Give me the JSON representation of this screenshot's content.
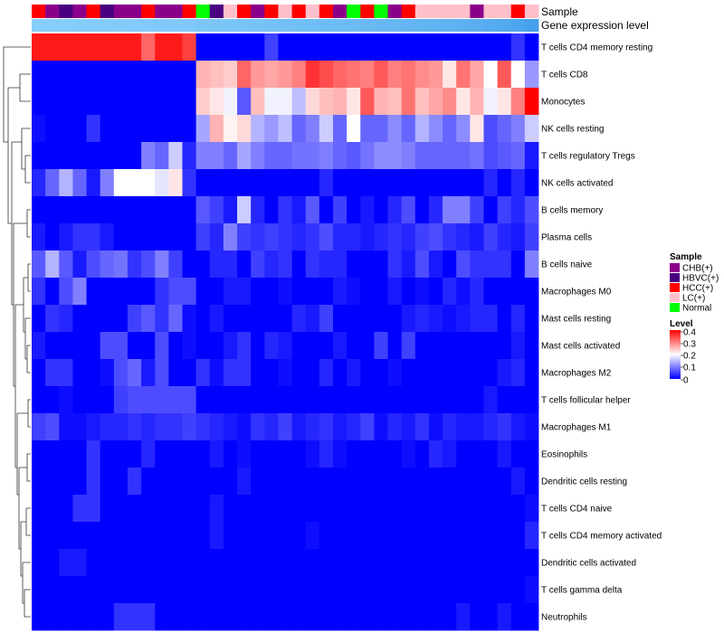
{
  "chart_data": {
    "type": "heatmap",
    "title": "",
    "annotation_rows": [
      "Sample",
      "Gene expression level"
    ],
    "rows": [
      "T cells CD4 memory resting",
      "T cells CD8",
      "Monocytes",
      "NK cells resting",
      "T cells regulatory  Tregs",
      "NK cells activated",
      "B cells memory",
      "Plasma cells",
      "B cells naive",
      "Macrophages M0",
      "Mast cells resting",
      "Mast cells activated",
      "Macrophages M2",
      "T cells follicular helper",
      "Macrophages M1",
      "Eosinophils",
      "Dendritic cells resting",
      "T cells CD4 naive",
      "T cells CD4 memory activated",
      "Dendritic cells activated",
      "T cells gamma delta",
      "Neutrophils"
    ],
    "samples": [
      "HCC(+)",
      "CHB(+)",
      "HBVC(+)",
      "CHB(+)",
      "HCC(+)",
      "HBVC(+)",
      "CHB(+)",
      "CHB(+)",
      "HCC(+)",
      "CHB(+)",
      "CHB(+)",
      "HCC(+)",
      "Normal",
      "HBVC(+)",
      "LC(+)",
      "HCC(+)",
      "CHB(+)",
      "HCC(+)",
      "LC(+)",
      "HCC(+)",
      "LC(+)",
      "HCC(+)",
      "CHB(+)",
      "Normal",
      "HCC(+)",
      "Normal",
      "CHB(+)",
      "HCC(+)",
      "LC(+)",
      "LC(+)",
      "LC(+)",
      "LC(+)",
      "CHB(+)",
      "LC(+)",
      "LC(+)",
      "HCC(+)",
      "LC(+)"
    ],
    "sample_colors": {
      "CHB(+)": "#8B008B",
      "HBVC(+)": "#4B0082",
      "HCC(+)": "#FF0000",
      "LC(+)": "#FFC0CB",
      "Normal": "#00FF00"
    },
    "gene_expression_bar": [
      0,
      0.02,
      0.03,
      0.04,
      0.05,
      0.06,
      0.07,
      0.08,
      0.09,
      0.1,
      0.11,
      0.12,
      0.15,
      0.18,
      0.2,
      0.22,
      0.25,
      0.28,
      0.3,
      0.32,
      0.35,
      0.38,
      0.4,
      0.42,
      0.45,
      0.48,
      0.5,
      0.52,
      0.55,
      0.58,
      0.6,
      0.65,
      0.7,
      0.75,
      0.8,
      0.9,
      1.0
    ],
    "values": [
      [
        0.38,
        0.38,
        0.38,
        0.38,
        0.38,
        0.38,
        0.38,
        0.38,
        0.32,
        0.38,
        0.38,
        0.35,
        0,
        0,
        0,
        0,
        0,
        0.05,
        0,
        0,
        0,
        0,
        0,
        0,
        0,
        0,
        0,
        0,
        0,
        0,
        0,
        0,
        0,
        0,
        0,
        0.04,
        0
      ],
      [
        0,
        0,
        0,
        0,
        0,
        0,
        0,
        0,
        0,
        0,
        0,
        0,
        0.26,
        0.25,
        0.24,
        0.32,
        0.28,
        0.27,
        0.28,
        0.3,
        0.36,
        0.34,
        0.32,
        0.31,
        0.3,
        0.33,
        0.3,
        0.31,
        0.29,
        0.28,
        0.22,
        0.31,
        0.27,
        0.2,
        0.33,
        0.2,
        0.12
      ],
      [
        0,
        0,
        0,
        0,
        0,
        0,
        0,
        0,
        0,
        0,
        0,
        0,
        0.24,
        0.22,
        0.19,
        0.07,
        0.25,
        0.19,
        0.19,
        0.15,
        0.23,
        0.25,
        0.26,
        0.22,
        0.33,
        0.26,
        0.25,
        0.31,
        0.25,
        0.27,
        0.29,
        0.22,
        0.26,
        0.19,
        0.22,
        0.3,
        0.4
      ],
      [
        0.01,
        0,
        0,
        0,
        0.04,
        0,
        0,
        0,
        0,
        0,
        0,
        0,
        0.13,
        0.26,
        0.21,
        0.23,
        0.14,
        0.12,
        0.15,
        0.08,
        0.1,
        0.16,
        0.08,
        0.2,
        0.08,
        0.08,
        0.11,
        0.08,
        0.14,
        0.11,
        0.08,
        0.11,
        0.22,
        0.06,
        0.08,
        0.1,
        0.16
      ],
      [
        0,
        0,
        0,
        0,
        0,
        0,
        0,
        0,
        0.1,
        0.08,
        0.16,
        0.03,
        0.1,
        0.1,
        0.08,
        0.13,
        0.1,
        0.08,
        0.08,
        0.09,
        0.09,
        0.1,
        0.08,
        0.07,
        0.09,
        0.11,
        0.11,
        0.1,
        0.08,
        0.08,
        0.08,
        0.08,
        0.09,
        0.06,
        0.07,
        0.08,
        0.02
      ],
      [
        0.03,
        0.08,
        0.14,
        0.08,
        0.02,
        0.1,
        0.2,
        0.2,
        0.2,
        0.18,
        0.22,
        0.04,
        0,
        0,
        0,
        0,
        0,
        0,
        0,
        0,
        0,
        0.03,
        0,
        0,
        0,
        0,
        0,
        0,
        0,
        0,
        0,
        0,
        0,
        0.03,
        0,
        0.03,
        0
      ],
      [
        0,
        0,
        0,
        0,
        0,
        0,
        0,
        0,
        0,
        0,
        0,
        0,
        0.07,
        0.05,
        0.02,
        0.16,
        0.03,
        0,
        0.04,
        0.02,
        0.07,
        0,
        0.05,
        0,
        0.02,
        0,
        0.03,
        0.06,
        0,
        0.03,
        0.1,
        0.1,
        0.05,
        0,
        0.05,
        0.03,
        0.06
      ],
      [
        0.02,
        0,
        0.02,
        0.04,
        0.04,
        0.02,
        0,
        0,
        0,
        0,
        0,
        0,
        0.05,
        0.03,
        0.1,
        0.05,
        0.04,
        0.05,
        0.04,
        0.03,
        0.04,
        0.06,
        0.03,
        0.03,
        0.02,
        0.03,
        0.04,
        0.03,
        0.05,
        0.06,
        0.04,
        0.03,
        0.02,
        0.05,
        0.03,
        0.02,
        0.05
      ],
      [
        0.07,
        0.14,
        0.07,
        0.02,
        0.06,
        0.08,
        0.09,
        0.04,
        0.06,
        0.1,
        0.05,
        0,
        0,
        0.03,
        0.03,
        0,
        0.05,
        0.03,
        0.04,
        0,
        0.04,
        0.03,
        0.03,
        0,
        0,
        0,
        0.04,
        0.02,
        0.06,
        0.02,
        0,
        0.06,
        0.04,
        0.04,
        0.04,
        0,
        0.1
      ],
      [
        0.04,
        0,
        0.06,
        0.1,
        0,
        0,
        0,
        0,
        0,
        0.04,
        0.06,
        0.06,
        0,
        0,
        0.02,
        0.02,
        0,
        0,
        0.01,
        0,
        0,
        0,
        0.02,
        0.01,
        0,
        0,
        0.02,
        0,
        0.01,
        0,
        0.03,
        0.01,
        0.03,
        0,
        0,
        0,
        0
      ],
      [
        0,
        0.04,
        0.03,
        0,
        0,
        0,
        0,
        0.05,
        0.07,
        0.04,
        0.08,
        0.01,
        0,
        0.02,
        0,
        0,
        0,
        0,
        0,
        0.03,
        0.02,
        0.05,
        0,
        0,
        0,
        0,
        0,
        0.02,
        0.03,
        0.02,
        0.01,
        0.02,
        0.03,
        0.03,
        0,
        0.03,
        0
      ],
      [
        0.02,
        0,
        0,
        0,
        0,
        0.06,
        0.06,
        0,
        0,
        0.06,
        0,
        0.01,
        0,
        0,
        0.02,
        0.04,
        0,
        0.03,
        0.02,
        0,
        0,
        0,
        0.02,
        0,
        0,
        0.05,
        0,
        0.05,
        0,
        0,
        0,
        0,
        0,
        0,
        0,
        0.02,
        0
      ],
      [
        0,
        0.04,
        0.04,
        0,
        0,
        0.01,
        0.06,
        0.08,
        0.02,
        0.06,
        0,
        0,
        0.04,
        0.01,
        0.04,
        0.04,
        0,
        0,
        0.01,
        0,
        0,
        0.03,
        0,
        0.02,
        0,
        0,
        0.01,
        0,
        0,
        0,
        0,
        0,
        0,
        0,
        0.02,
        0.03,
        0
      ],
      [
        0,
        0,
        0.01,
        0,
        0,
        0,
        0.05,
        0.06,
        0.06,
        0.06,
        0.06,
        0.06,
        0,
        0,
        0,
        0,
        0,
        0,
        0,
        0,
        0,
        0,
        0,
        0,
        0,
        0,
        0,
        0,
        0,
        0,
        0,
        0,
        0,
        0.02,
        0,
        0,
        0
      ],
      [
        0.05,
        0.06,
        0.01,
        0.01,
        0.02,
        0.03,
        0.03,
        0.04,
        0.03,
        0.04,
        0.04,
        0.05,
        0.04,
        0.03,
        0.02,
        0.01,
        0.04,
        0.03,
        0.05,
        0.02,
        0.03,
        0.04,
        0.02,
        0.03,
        0.05,
        0.01,
        0.03,
        0.02,
        0.04,
        0.01,
        0.03,
        0.02,
        0.02,
        0.03,
        0.04,
        0.02,
        0.01
      ],
      [
        0,
        0,
        0,
        0,
        0.04,
        0,
        0,
        0,
        0.03,
        0,
        0,
        0,
        0,
        0.02,
        0,
        0.01,
        0,
        0,
        0,
        0,
        0.01,
        0.03,
        0.01,
        0,
        0,
        0,
        0,
        0.01,
        0,
        0.03,
        0.02,
        0,
        0,
        0,
        0.02,
        0,
        0
      ],
      [
        0,
        0,
        0,
        0,
        0.04,
        0,
        0,
        0.04,
        0,
        0,
        0,
        0,
        0,
        0,
        0,
        0.02,
        0,
        0,
        0,
        0,
        0,
        0,
        0,
        0,
        0,
        0,
        0,
        0,
        0,
        0,
        0,
        0,
        0,
        0,
        0,
        0.02,
        0
      ],
      [
        0,
        0,
        0,
        0.04,
        0.04,
        0,
        0,
        0,
        0,
        0,
        0,
        0,
        0,
        0.02,
        0,
        0,
        0,
        0,
        0,
        0,
        0,
        0,
        0,
        0,
        0,
        0,
        0,
        0,
        0,
        0,
        0,
        0,
        0,
        0,
        0,
        0,
        0.01
      ],
      [
        0,
        0,
        0,
        0,
        0,
        0,
        0,
        0,
        0,
        0,
        0,
        0,
        0,
        0.02,
        0,
        0,
        0,
        0,
        0,
        0,
        0.01,
        0,
        0,
        0,
        0,
        0,
        0,
        0,
        0,
        0,
        0,
        0,
        0,
        0,
        0,
        0,
        0.03
      ],
      [
        0,
        0,
        0.02,
        0.02,
        0,
        0,
        0,
        0,
        0,
        0,
        0,
        0,
        0,
        0,
        0,
        0,
        0,
        0,
        0,
        0,
        0,
        0,
        0,
        0,
        0,
        0,
        0,
        0,
        0,
        0,
        0,
        0,
        0,
        0,
        0,
        0,
        0
      ],
      [
        0,
        0,
        0,
        0,
        0,
        0,
        0,
        0,
        0,
        0,
        0,
        0,
        0,
        0,
        0,
        0,
        0,
        0,
        0,
        0,
        0,
        0,
        0,
        0,
        0,
        0,
        0,
        0,
        0,
        0,
        0,
        0,
        0,
        0,
        0,
        0,
        0.01
      ],
      [
        0,
        0,
        0,
        0,
        0,
        0,
        0.04,
        0.04,
        0.04,
        0,
        0,
        0,
        0,
        0,
        0,
        0,
        0,
        0,
        0,
        0,
        0,
        0,
        0,
        0,
        0,
        0,
        0,
        0,
        0,
        0,
        0,
        0.02,
        0,
        0,
        0.02,
        0,
        0
      ]
    ],
    "legend": {
      "sample_title": "Sample",
      "sample_entries": [
        "CHB(+)",
        "HBVC(+)",
        "HCC(+)",
        "LC(+)",
        "Normal"
      ],
      "level_title": "Level",
      "level_ticks": [
        "0.4",
        "0.3",
        "0.2",
        "0.1",
        "0"
      ],
      "level_range": [
        0,
        0.4
      ],
      "level_colors": [
        "#0000FF",
        "#FFFFFF",
        "#FF0000"
      ]
    }
  }
}
